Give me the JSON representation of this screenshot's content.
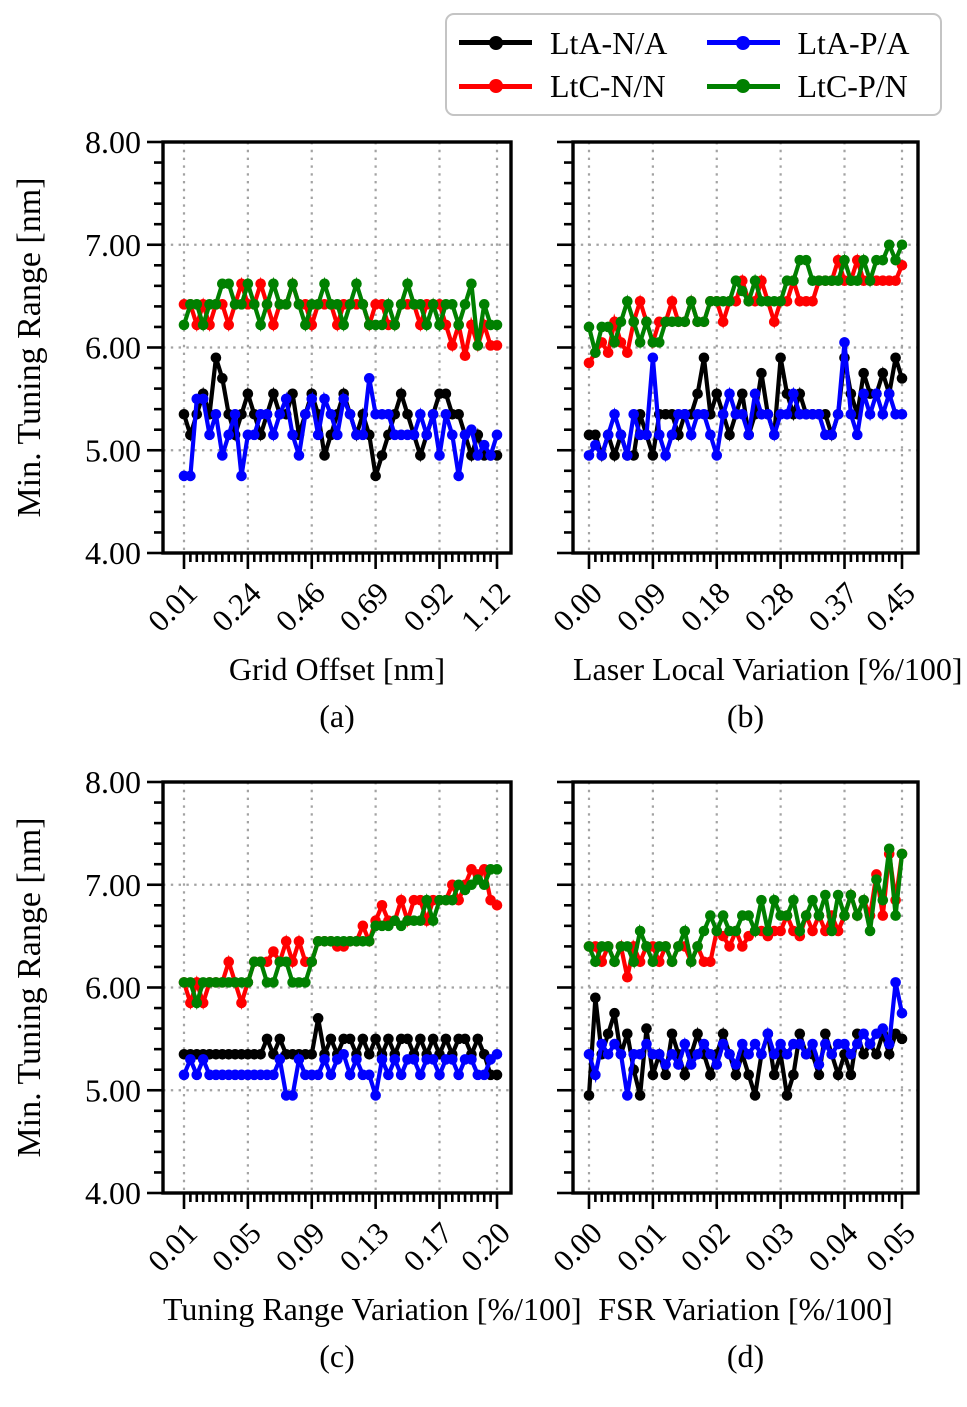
{
  "figure": {
    "title": "",
    "y_axis_title": "Min. Tuning Range [nm]"
  },
  "legend": {
    "entries": [
      {
        "label": "LtA-N/A",
        "color": "#000000"
      },
      {
        "label": "LtA-P/A",
        "color": "#0000ff"
      },
      {
        "label": "LtC-N/N",
        "color": "#ff0000"
      },
      {
        "label": "LtC-P/N",
        "color": "#008000"
      }
    ]
  },
  "colors": {
    "black": "#000000",
    "red": "#ff0000",
    "blue": "#0000ff",
    "green": "#008000",
    "grid": "#a3a3a3"
  },
  "chart_data": [
    {
      "type": "line",
      "caption": "(a)",
      "xlabel": "Grid Offset [nm]",
      "ylabel": "Min. Tuning Range [nm]",
      "ylim": [
        4.0,
        8.0
      ],
      "y_tick_values": [
        4,
        5,
        6,
        7,
        8
      ],
      "y_ticklabels": [
        "4.00",
        "5.00",
        "6.00",
        "7.00",
        "8.00"
      ],
      "x_ticklabels": [
        "0.01",
        "0.24",
        "0.46",
        "0.69",
        "0.92",
        "1.12"
      ],
      "x_range": [
        0.01,
        1.12
      ],
      "grid": true,
      "series": [
        {
          "name": "LtA-N/A",
          "color": "#000000",
          "values": [
            5.35,
            5.15,
            5.35,
            5.55,
            5.35,
            5.9,
            5.7,
            5.35,
            5.15,
            5.35,
            5.55,
            5.35,
            5.15,
            5.35,
            5.55,
            5.35,
            5.35,
            5.55,
            5.15,
            5.35,
            5.55,
            5.35,
            4.95,
            5.15,
            5.35,
            5.55,
            5.35,
            5.15,
            5.35,
            5.15,
            4.75,
            4.95,
            5.15,
            5.35,
            5.55,
            5.35,
            5.15,
            4.95,
            5.15,
            5.35,
            5.55,
            5.55,
            5.35,
            5.35,
            5.15,
            4.95,
            5.15,
            4.95,
            4.95,
            4.95
          ]
        },
        {
          "name": "LtC-N/N",
          "color": "#ff0000",
          "values": [
            6.42,
            6.42,
            6.22,
            6.42,
            6.22,
            6.42,
            6.42,
            6.22,
            6.42,
            6.62,
            6.42,
            6.42,
            6.62,
            6.42,
            6.22,
            6.42,
            6.42,
            6.62,
            6.42,
            6.42,
            6.22,
            6.42,
            6.42,
            6.42,
            6.22,
            6.42,
            6.42,
            6.42,
            6.42,
            6.22,
            6.42,
            6.42,
            6.22,
            6.22,
            6.42,
            6.42,
            6.42,
            6.22,
            6.42,
            6.42,
            6.42,
            6.22,
            6.02,
            6.22,
            5.92,
            6.22,
            6.02,
            6.22,
            6.02,
            6.02
          ]
        },
        {
          "name": "LtA-P/A",
          "color": "#0000ff",
          "values": [
            4.75,
            4.75,
            5.5,
            5.5,
            5.15,
            5.35,
            4.95,
            5.15,
            5.35,
            4.75,
            5.15,
            5.15,
            5.35,
            5.35,
            5.15,
            5.35,
            5.5,
            5.15,
            4.95,
            5.35,
            5.5,
            5.15,
            5.5,
            5.35,
            5.15,
            5.5,
            5.35,
            5.15,
            5.15,
            5.7,
            5.35,
            5.35,
            5.35,
            5.15,
            5.15,
            5.15,
            5.15,
            5.35,
            5.15,
            5.35,
            4.95,
            5.35,
            5.15,
            4.75,
            5.15,
            5.2,
            4.95,
            5.05,
            4.95,
            5.15
          ]
        },
        {
          "name": "LtC-P/N",
          "color": "#008000",
          "values": [
            6.22,
            6.42,
            6.42,
            6.22,
            6.42,
            6.42,
            6.62,
            6.62,
            6.42,
            6.42,
            6.62,
            6.42,
            6.22,
            6.42,
            6.62,
            6.42,
            6.42,
            6.62,
            6.42,
            6.22,
            6.42,
            6.42,
            6.62,
            6.42,
            6.42,
            6.22,
            6.42,
            6.62,
            6.42,
            6.22,
            6.22,
            6.22,
            6.42,
            6.22,
            6.42,
            6.62,
            6.42,
            6.42,
            6.22,
            6.42,
            6.22,
            6.42,
            6.42,
            6.22,
            6.42,
            6.62,
            6.02,
            6.42,
            6.22,
            6.22
          ]
        }
      ]
    },
    {
      "type": "line",
      "caption": "(b)",
      "xlabel": "Laser Local Variation [%/100]",
      "ylabel": "Min. Tuning Range [nm]",
      "ylim": [
        4.0,
        8.0
      ],
      "y_tick_values": [
        4,
        5,
        6,
        7,
        8
      ],
      "y_ticklabels": [
        "4.00",
        "5.00",
        "6.00",
        "7.00",
        "8.00"
      ],
      "x_ticklabels": [
        "0.00",
        "0.09",
        "0.18",
        "0.28",
        "0.37",
        "0.45"
      ],
      "x_range": [
        0.0,
        0.45
      ],
      "grid": true,
      "series": [
        {
          "name": "LtA-N/A",
          "color": "#000000",
          "values": [
            5.15,
            5.15,
            4.95,
            5.15,
            4.95,
            5.15,
            4.95,
            4.95,
            5.35,
            5.15,
            4.95,
            5.35,
            5.35,
            5.35,
            5.15,
            5.35,
            5.35,
            5.55,
            5.9,
            5.35,
            5.55,
            5.35,
            5.15,
            5.35,
            5.55,
            5.15,
            5.35,
            5.75,
            5.35,
            5.15,
            5.9,
            5.55,
            5.35,
            5.55,
            5.35,
            5.35,
            5.35,
            5.35,
            5.15,
            5.35,
            5.9,
            5.55,
            5.35,
            5.75,
            5.55,
            5.55,
            5.75,
            5.55,
            5.9,
            5.7
          ]
        },
        {
          "name": "LtC-N/N",
          "color": "#ff0000",
          "values": [
            5.85,
            5.95,
            6.05,
            5.95,
            6.25,
            6.05,
            5.95,
            6.25,
            6.45,
            6.25,
            6.05,
            6.25,
            6.25,
            6.45,
            6.25,
            6.25,
            6.45,
            6.25,
            6.25,
            6.45,
            6.45,
            6.25,
            6.45,
            6.45,
            6.65,
            6.45,
            6.45,
            6.65,
            6.45,
            6.25,
            6.45,
            6.45,
            6.65,
            6.45,
            6.45,
            6.45,
            6.65,
            6.65,
            6.65,
            6.85,
            6.65,
            6.65,
            6.85,
            6.65,
            6.65,
            6.65,
            6.65,
            6.65,
            6.65,
            6.8
          ]
        },
        {
          "name": "LtA-P/A",
          "color": "#0000ff",
          "values": [
            4.95,
            5.05,
            4.95,
            5.15,
            5.35,
            5.15,
            4.95,
            5.35,
            5.15,
            5.15,
            5.9,
            5.15,
            4.95,
            5.15,
            5.35,
            5.35,
            5.15,
            5.35,
            5.35,
            5.15,
            4.95,
            5.35,
            5.55,
            5.35,
            5.35,
            5.15,
            5.55,
            5.35,
            5.35,
            5.15,
            5.35,
            5.35,
            5.55,
            5.35,
            5.35,
            5.35,
            5.35,
            5.15,
            5.15,
            5.35,
            6.05,
            5.35,
            5.15,
            5.55,
            5.35,
            5.55,
            5.35,
            5.55,
            5.35,
            5.35
          ]
        },
        {
          "name": "LtC-P/N",
          "color": "#008000",
          "values": [
            6.2,
            5.95,
            6.2,
            6.2,
            6.05,
            6.25,
            6.45,
            6.25,
            6.05,
            6.25,
            6.05,
            6.05,
            6.25,
            6.25,
            6.25,
            6.25,
            6.45,
            6.25,
            6.25,
            6.45,
            6.45,
            6.45,
            6.45,
            6.65,
            6.55,
            6.45,
            6.65,
            6.45,
            6.45,
            6.45,
            6.45,
            6.65,
            6.65,
            6.85,
            6.85,
            6.65,
            6.65,
            6.65,
            6.65,
            6.65,
            6.85,
            6.65,
            6.65,
            6.85,
            6.65,
            6.85,
            6.85,
            7.0,
            6.85,
            7.0
          ]
        }
      ]
    },
    {
      "type": "line",
      "caption": "(c)",
      "xlabel": "Tuning Range Variation [%/100]",
      "ylabel": "Min. Tuning Range [nm]",
      "ylim": [
        4.0,
        8.0
      ],
      "y_tick_values": [
        4,
        5,
        6,
        7,
        8
      ],
      "y_ticklabels": [
        "4.00",
        "5.00",
        "6.00",
        "7.00",
        "8.00"
      ],
      "x_ticklabels": [
        "0.01",
        "0.05",
        "0.09",
        "0.13",
        "0.17",
        "0.20"
      ],
      "x_range": [
        0.01,
        0.2
      ],
      "grid": true,
      "series": [
        {
          "name": "LtA-N/A",
          "color": "#000000",
          "values": [
            5.35,
            5.35,
            5.35,
            5.35,
            5.35,
            5.35,
            5.35,
            5.35,
            5.35,
            5.35,
            5.35,
            5.35,
            5.35,
            5.5,
            5.35,
            5.5,
            5.35,
            5.35,
            5.35,
            5.35,
            5.35,
            5.7,
            5.35,
            5.5,
            5.35,
            5.5,
            5.5,
            5.35,
            5.5,
            5.35,
            5.5,
            5.35,
            5.5,
            5.35,
            5.5,
            5.5,
            5.35,
            5.5,
            5.35,
            5.5,
            5.35,
            5.5,
            5.35,
            5.5,
            5.5,
            5.35,
            5.5,
            5.35,
            5.15,
            5.15
          ]
        },
        {
          "name": "LtC-N/N",
          "color": "#ff0000",
          "values": [
            6.05,
            5.85,
            6.05,
            5.85,
            6.05,
            6.05,
            6.05,
            6.25,
            6.05,
            5.85,
            6.05,
            6.25,
            6.25,
            6.25,
            6.35,
            6.25,
            6.45,
            6.25,
            6.45,
            6.25,
            6.25,
            6.45,
            6.45,
            6.45,
            6.4,
            6.4,
            6.45,
            6.45,
            6.6,
            6.45,
            6.65,
            6.8,
            6.65,
            6.65,
            6.85,
            6.65,
            6.85,
            6.85,
            6.65,
            6.85,
            6.85,
            6.85,
            7.0,
            6.85,
            7.0,
            7.15,
            7.1,
            7.15,
            6.85,
            6.8
          ]
        },
        {
          "name": "LtA-P/A",
          "color": "#0000ff",
          "values": [
            5.15,
            5.3,
            5.15,
            5.3,
            5.15,
            5.15,
            5.15,
            5.15,
            5.15,
            5.15,
            5.15,
            5.15,
            5.15,
            5.15,
            5.15,
            5.3,
            4.95,
            4.95,
            5.3,
            5.15,
            5.15,
            5.15,
            5.3,
            5.15,
            5.3,
            5.35,
            5.15,
            5.3,
            5.15,
            5.15,
            4.95,
            5.3,
            5.15,
            5.3,
            5.15,
            5.3,
            5.3,
            5.15,
            5.3,
            5.3,
            5.15,
            5.3,
            5.3,
            5.15,
            5.3,
            5.3,
            5.15,
            5.15,
            5.3,
            5.35
          ]
        },
        {
          "name": "LtC-P/N",
          "color": "#008000",
          "values": [
            6.05,
            6.05,
            5.85,
            6.05,
            6.05,
            6.05,
            6.05,
            6.05,
            6.05,
            6.05,
            6.05,
            6.25,
            6.25,
            6.05,
            6.05,
            6.25,
            6.25,
            6.05,
            6.05,
            6.05,
            6.25,
            6.45,
            6.45,
            6.45,
            6.45,
            6.45,
            6.45,
            6.45,
            6.45,
            6.45,
            6.6,
            6.6,
            6.6,
            6.65,
            6.6,
            6.65,
            6.65,
            6.65,
            6.85,
            6.65,
            6.85,
            6.85,
            6.85,
            7.0,
            6.95,
            7.0,
            7.05,
            7.0,
            7.15,
            7.15
          ]
        }
      ]
    },
    {
      "type": "line",
      "caption": "(d)",
      "xlabel": "FSR Variation [%/100]",
      "ylabel": "Min. Tuning Range [nm]",
      "ylim": [
        4.0,
        8.0
      ],
      "y_tick_values": [
        4,
        5,
        6,
        7,
        8
      ],
      "y_ticklabels": [
        "4.00",
        "5.00",
        "6.00",
        "7.00",
        "8.00"
      ],
      "x_ticklabels": [
        "0.00",
        "0.01",
        "0.02",
        "0.03",
        "0.04",
        "0.05"
      ],
      "x_range": [
        0.0,
        0.05
      ],
      "grid": true,
      "series": [
        {
          "name": "LtA-N/A",
          "color": "#000000",
          "values": [
            4.95,
            5.9,
            5.35,
            5.55,
            5.75,
            5.35,
            5.55,
            5.2,
            4.95,
            5.6,
            5.15,
            5.35,
            5.15,
            5.55,
            5.35,
            5.15,
            5.35,
            5.55,
            5.35,
            5.15,
            5.35,
            5.55,
            5.35,
            5.15,
            5.35,
            5.15,
            4.95,
            5.35,
            5.55,
            5.15,
            5.35,
            4.95,
            5.15,
            5.55,
            5.35,
            5.35,
            5.15,
            5.55,
            5.35,
            5.15,
            5.35,
            5.15,
            5.55,
            5.35,
            5.45,
            5.35,
            5.55,
            5.35,
            5.55,
            5.5
          ]
        },
        {
          "name": "LtC-N/N",
          "color": "#ff0000",
          "values": [
            6.4,
            6.4,
            6.25,
            6.4,
            6.25,
            6.4,
            6.1,
            6.4,
            6.25,
            6.4,
            6.4,
            6.25,
            6.4,
            6.25,
            6.4,
            6.4,
            6.25,
            6.4,
            6.25,
            6.25,
            6.55,
            6.5,
            6.4,
            6.55,
            6.4,
            6.5,
            6.55,
            6.55,
            6.5,
            6.55,
            6.55,
            6.7,
            6.55,
            6.5,
            6.7,
            6.55,
            6.7,
            6.55,
            6.7,
            6.55,
            6.7,
            6.9,
            6.7,
            6.85,
            6.7,
            7.1,
            6.7,
            7.3,
            6.85,
            7.3
          ]
        },
        {
          "name": "LtA-P/A",
          "color": "#0000ff",
          "values": [
            5.35,
            5.15,
            5.45,
            5.35,
            5.45,
            5.35,
            4.95,
            5.35,
            5.35,
            5.45,
            5.35,
            5.35,
            5.25,
            5.35,
            5.25,
            5.45,
            5.25,
            5.35,
            5.45,
            5.35,
            5.25,
            5.45,
            5.35,
            5.25,
            5.45,
            5.35,
            5.45,
            5.35,
            5.55,
            5.35,
            5.45,
            5.35,
            5.45,
            5.45,
            5.35,
            5.45,
            5.25,
            5.45,
            5.35,
            5.45,
            5.45,
            5.35,
            5.45,
            5.55,
            5.45,
            5.55,
            5.6,
            5.45,
            6.05,
            5.75
          ]
        },
        {
          "name": "LtC-P/N",
          "color": "#008000",
          "values": [
            6.4,
            6.25,
            6.4,
            6.4,
            6.25,
            6.4,
            6.4,
            6.25,
            6.55,
            6.4,
            6.25,
            6.4,
            6.4,
            6.25,
            6.4,
            6.55,
            6.25,
            6.4,
            6.55,
            6.7,
            6.55,
            6.7,
            6.55,
            6.55,
            6.7,
            6.7,
            6.55,
            6.85,
            6.55,
            6.85,
            6.7,
            6.7,
            6.85,
            6.55,
            6.7,
            6.85,
            6.7,
            6.9,
            6.55,
            6.9,
            6.7,
            6.9,
            6.7,
            6.85,
            6.55,
            7.05,
            6.85,
            7.35,
            6.7,
            7.3
          ]
        }
      ]
    }
  ]
}
